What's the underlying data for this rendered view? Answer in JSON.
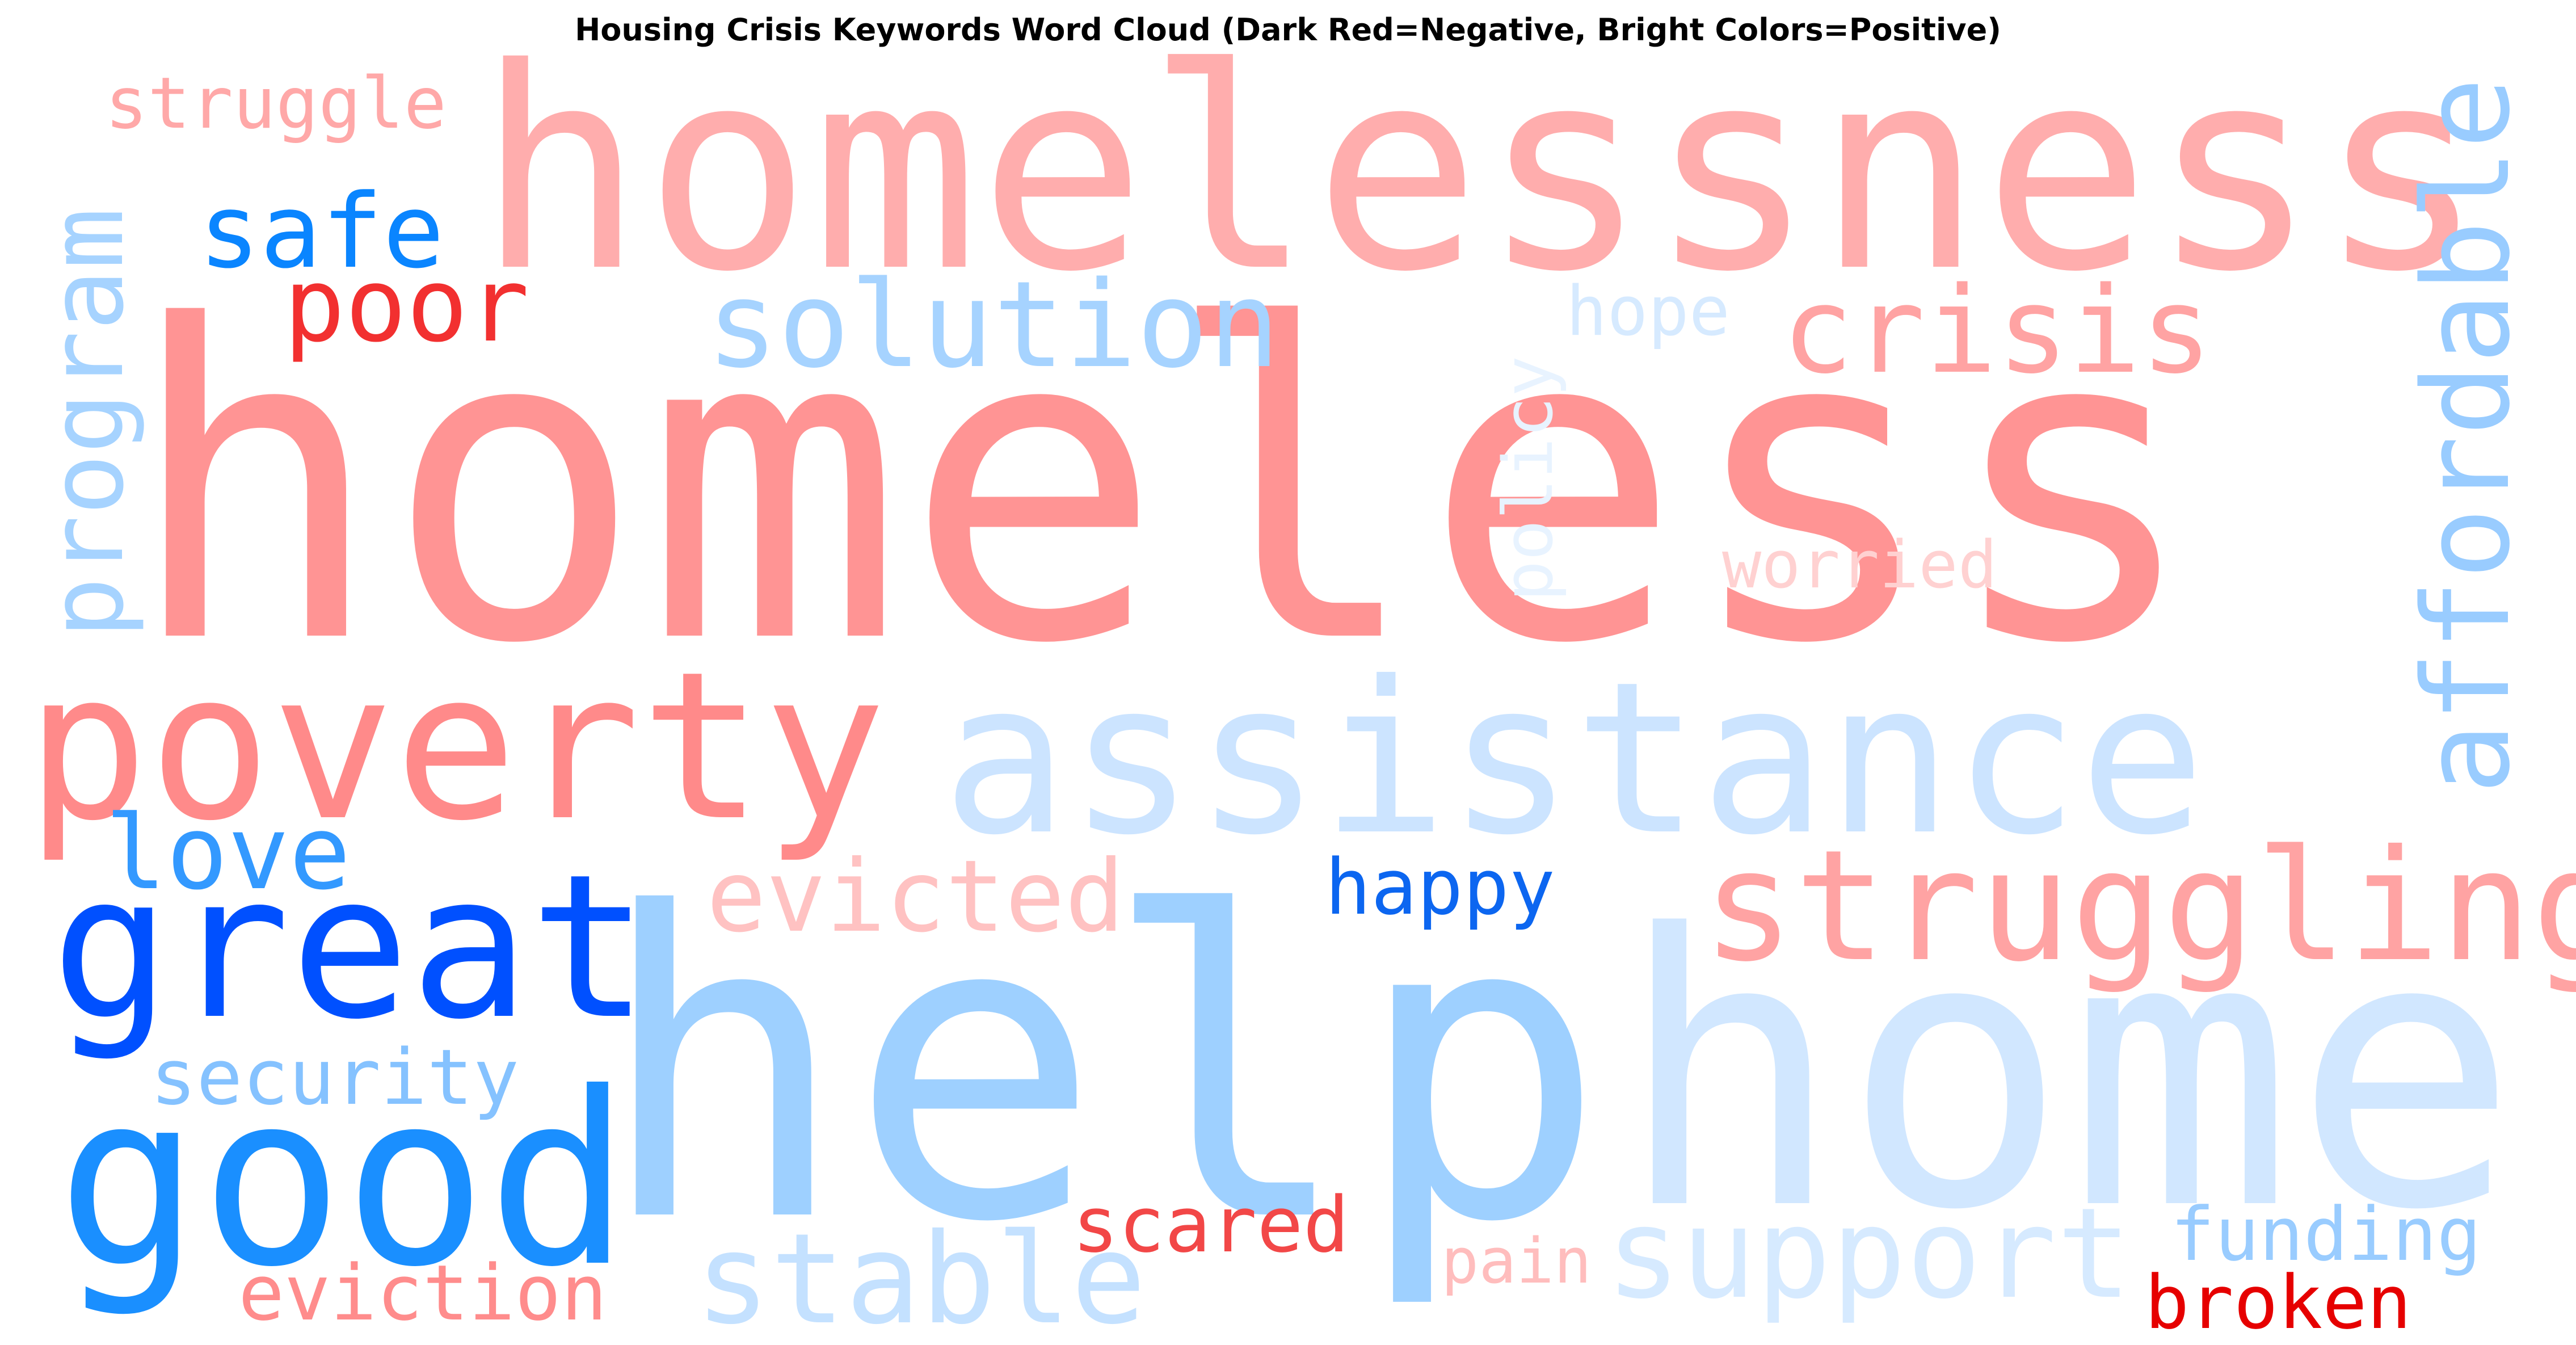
{
  "title": "Housing Crisis Keywords Word Cloud (Dark Red=Negative, Bright Colors=Positive)",
  "words": [
    {
      "text": "homeless",
      "color": "#ff9494",
      "sentiment": "negative",
      "vertical": false
    },
    {
      "text": "homelessness",
      "color": "#ffadad",
      "sentiment": "negative",
      "vertical": false
    },
    {
      "text": "help",
      "color": "#9ed0ff",
      "sentiment": "positive",
      "vertical": false
    },
    {
      "text": "home",
      "color": "#d1e7ff",
      "sentiment": "positive",
      "vertical": false
    },
    {
      "text": "assistance",
      "color": "#cce4ff",
      "sentiment": "positive",
      "vertical": false
    },
    {
      "text": "poverty",
      "color": "#ff8a8a",
      "sentiment": "negative",
      "vertical": false
    },
    {
      "text": "good",
      "color": "#1a8fff",
      "sentiment": "positive",
      "vertical": false
    },
    {
      "text": "great",
      "color": "#0050ff",
      "sentiment": "positive",
      "vertical": false
    },
    {
      "text": "struggling",
      "color": "#ffa3a3",
      "sentiment": "negative",
      "vertical": false
    },
    {
      "text": "support",
      "color": "#d6eaff",
      "sentiment": "positive",
      "vertical": false
    },
    {
      "text": "stable",
      "color": "#c4e1ff",
      "sentiment": "positive",
      "vertical": false
    },
    {
      "text": "solution",
      "color": "#a6d3ff",
      "sentiment": "positive",
      "vertical": false
    },
    {
      "text": "crisis",
      "color": "#ffa3a3",
      "sentiment": "negative",
      "vertical": false
    },
    {
      "text": "affordable",
      "color": "#99ccff",
      "sentiment": "positive",
      "vertical": true
    },
    {
      "text": "program",
      "color": "#a6d3ff",
      "sentiment": "positive",
      "vertical": true
    },
    {
      "text": "poor",
      "color": "#f23030",
      "sentiment": "negative",
      "vertical": false
    },
    {
      "text": "safe",
      "color": "#0a85ff",
      "sentiment": "positive",
      "vertical": false
    },
    {
      "text": "struggle",
      "color": "#ffa8a8",
      "sentiment": "negative",
      "vertical": false
    },
    {
      "text": "love",
      "color": "#3399ff",
      "sentiment": "positive",
      "vertical": false
    },
    {
      "text": "evicted",
      "color": "#ffc2c2",
      "sentiment": "negative",
      "vertical": false
    },
    {
      "text": "happy",
      "color": "#0c66f0",
      "sentiment": "positive",
      "vertical": false
    },
    {
      "text": "security",
      "color": "#85c2ff",
      "sentiment": "positive",
      "vertical": false
    },
    {
      "text": "scared",
      "color": "#f24747",
      "sentiment": "negative",
      "vertical": false
    },
    {
      "text": "eviction",
      "color": "#ff8c8c",
      "sentiment": "negative",
      "vertical": false
    },
    {
      "text": "pain",
      "color": "#ffbdbd",
      "sentiment": "negative",
      "vertical": false
    },
    {
      "text": "funding",
      "color": "#99ccff",
      "sentiment": "positive",
      "vertical": false
    },
    {
      "text": "broken",
      "color": "#e60000",
      "sentiment": "negative",
      "vertical": false
    },
    {
      "text": "hope",
      "color": "#d6eaff",
      "sentiment": "positive",
      "vertical": false
    },
    {
      "text": "policy",
      "color": "#e8f3ff",
      "sentiment": "positive",
      "vertical": true
    },
    {
      "text": "worried",
      "color": "#ffd1d1",
      "sentiment": "negative",
      "vertical": false
    }
  ]
}
